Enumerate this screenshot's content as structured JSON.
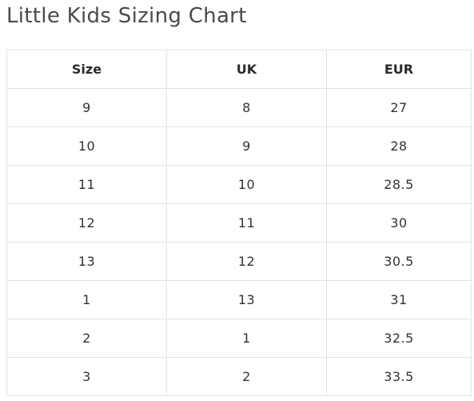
{
  "title": "Little Kids Sizing Chart",
  "table": {
    "headers": [
      "Size",
      "UK",
      "EUR"
    ],
    "rows": [
      [
        "9",
        "8",
        "27"
      ],
      [
        "10",
        "9",
        "28"
      ],
      [
        "11",
        "10",
        "28.5"
      ],
      [
        "12",
        "11",
        "30"
      ],
      [
        "13",
        "12",
        "30.5"
      ],
      [
        "1",
        "13",
        "31"
      ],
      [
        "2",
        "1",
        "32.5"
      ],
      [
        "3",
        "2",
        "33.5"
      ]
    ]
  }
}
